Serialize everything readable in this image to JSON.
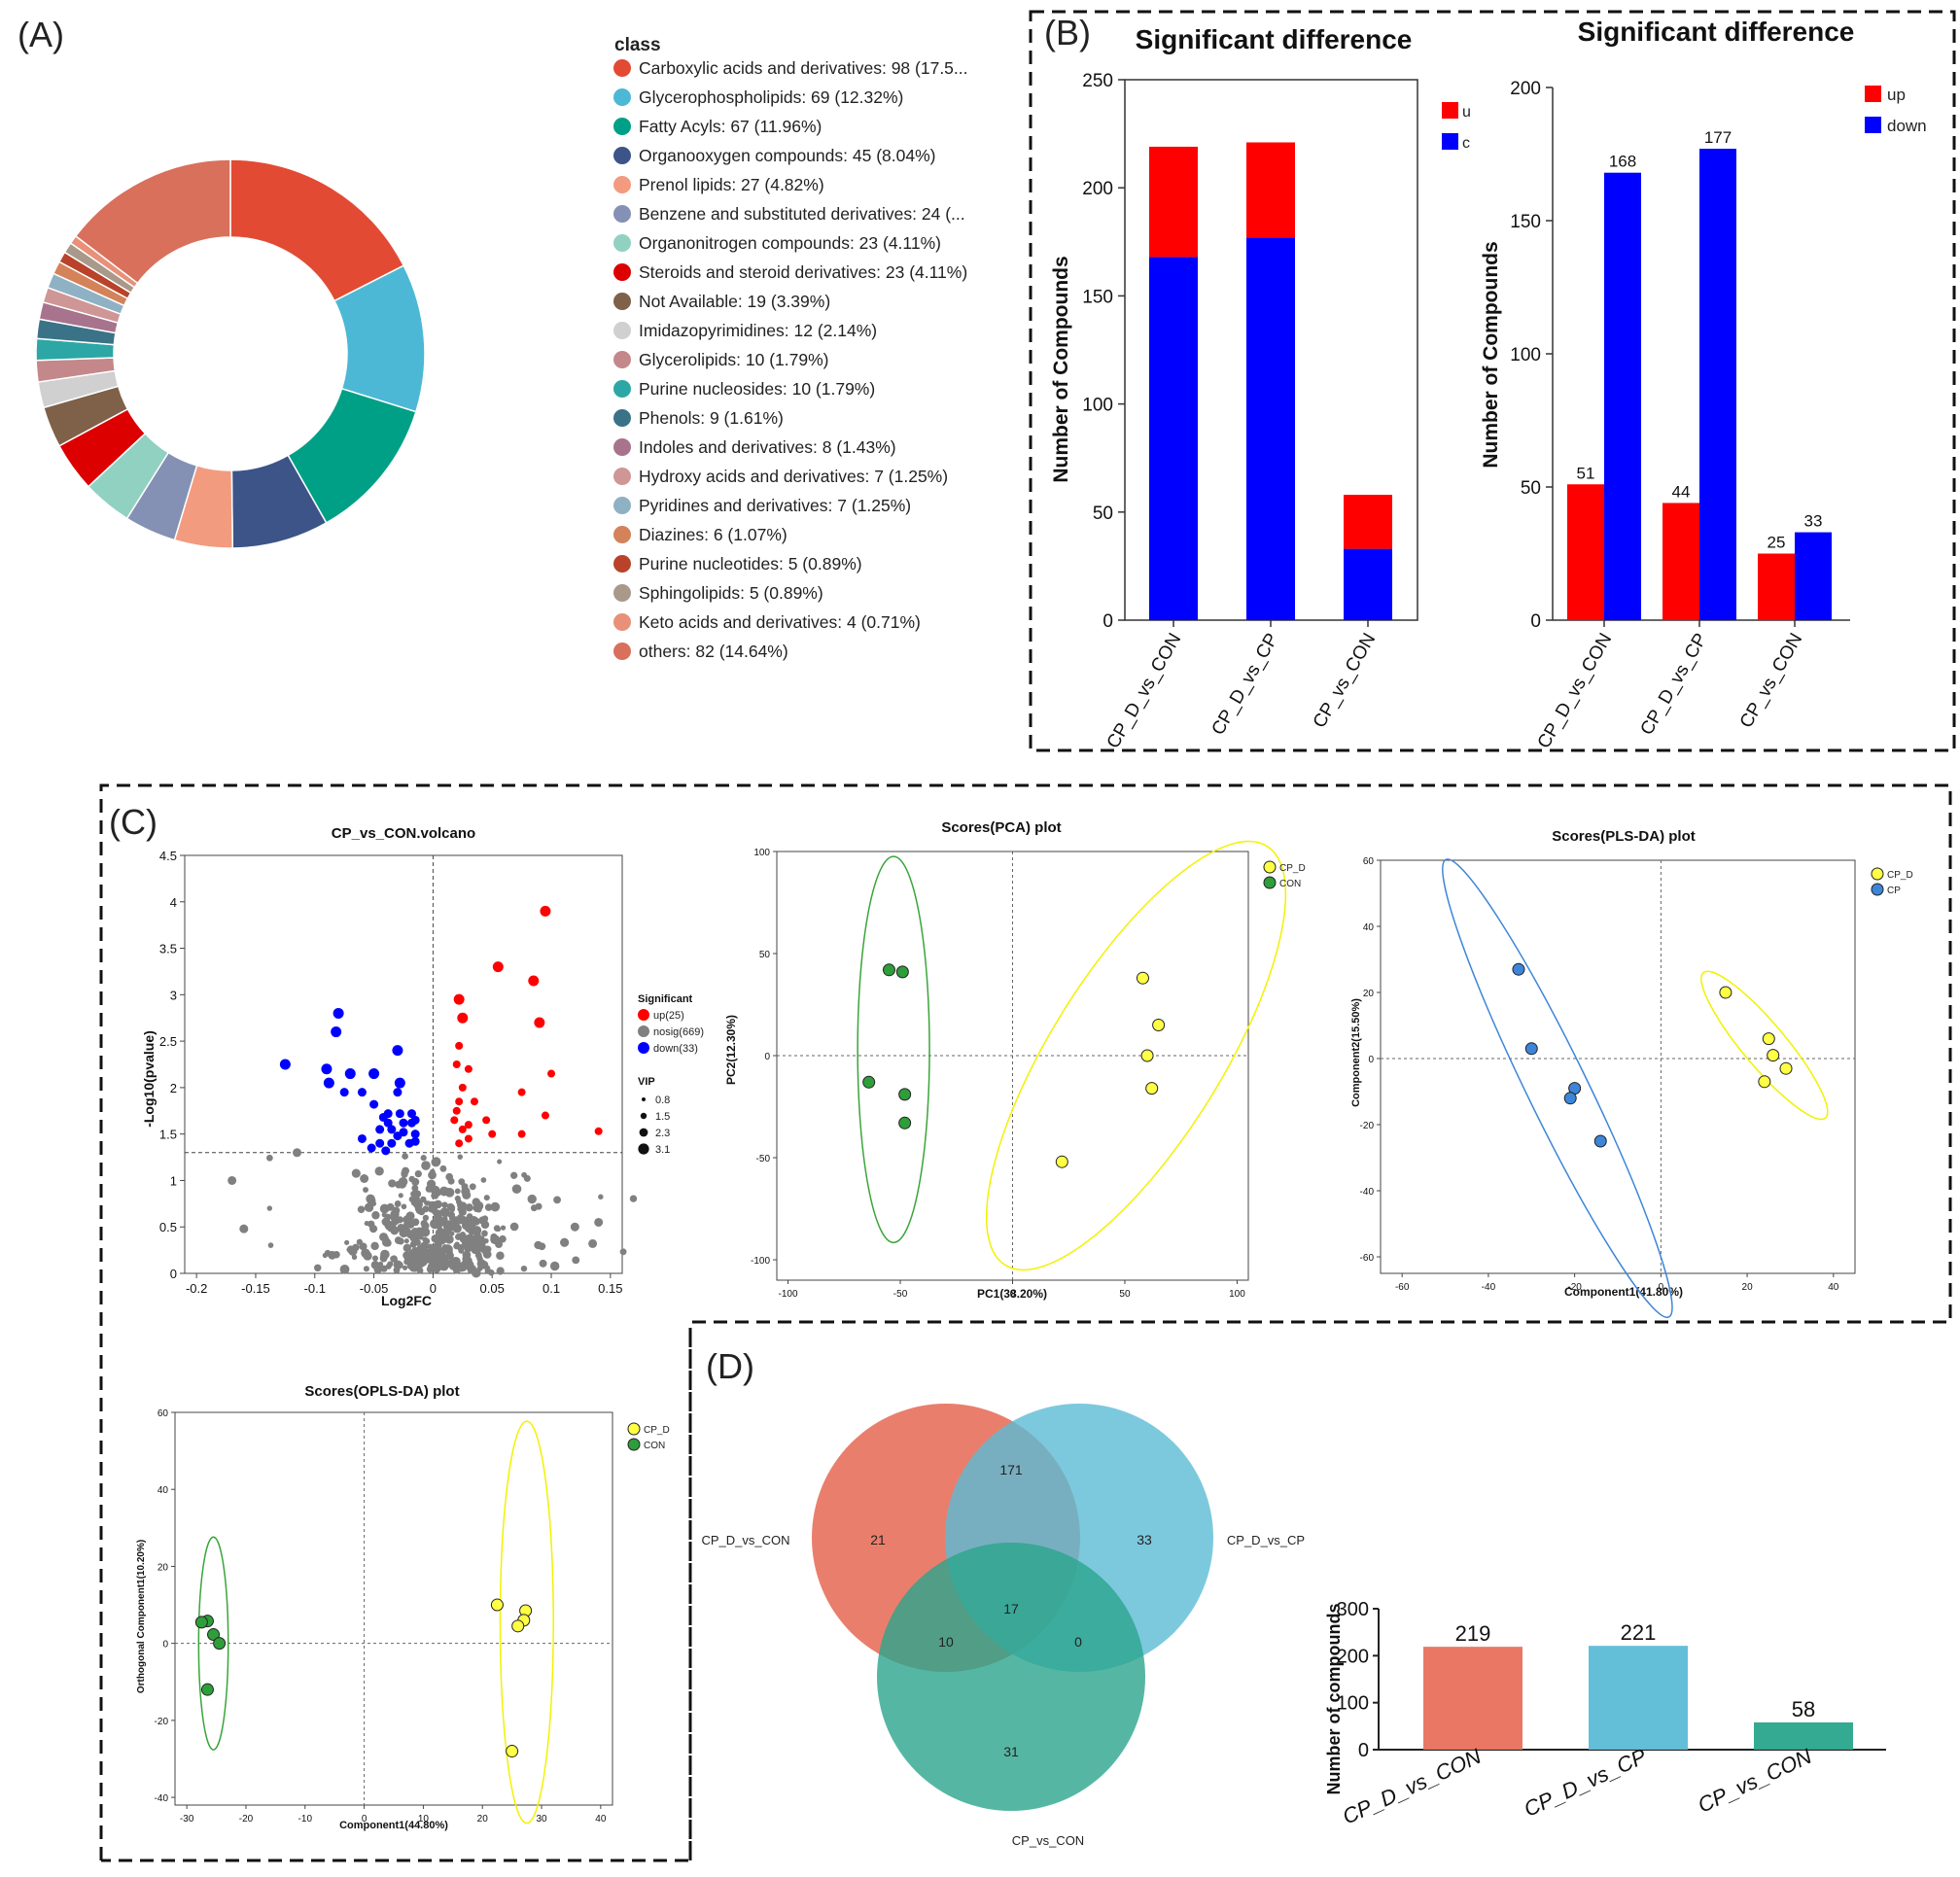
{
  "colors": {
    "up": "#ff0000",
    "down": "#0000ff",
    "nosig": "#808080",
    "group_cp_d": "#ffff44",
    "group_con": "#2e9e3a",
    "group_cp": "#3d85d8",
    "ellipse_cp_d": "#f2f200",
    "ellipse_con": "#3aa53a",
    "ellipse_cp": "#3d85d8",
    "venn_a": "#e8705c",
    "venn_b": "#5bbcd6",
    "venn_c": "#2aa58c"
  },
  "panel_labels": {
    "a": "(A)",
    "b": "(B)",
    "c": "(C)",
    "d": "(D)"
  },
  "chart_data": [
    {
      "id": "A",
      "type": "pie",
      "style": "donut",
      "legend_title": "class",
      "slices": [
        {
          "label": "Carboxylic acids and derivatives: 98 (17.5...",
          "value": 98,
          "color": "#e34a33"
        },
        {
          "label": "Glycerophospholipids: 69 (12.32%)",
          "value": 69,
          "color": "#4db8d5"
        },
        {
          "label": "Fatty Acyls: 67 (11.96%)",
          "value": 67,
          "color": "#00a087"
        },
        {
          "label": "Organooxygen compounds: 45 (8.04%)",
          "value": 45,
          "color": "#3c5488"
        },
        {
          "label": "Prenol lipids: 27 (4.82%)",
          "value": 27,
          "color": "#f39b7f"
        },
        {
          "label": "Benzene and substituted derivatives: 24 (...",
          "value": 24,
          "color": "#8491b4"
        },
        {
          "label": "Organonitrogen compounds: 23 (4.11%)",
          "value": 23,
          "color": "#91d1c2"
        },
        {
          "label": "Steroids and steroid derivatives: 23 (4.11%)",
          "value": 23,
          "color": "#dc0000"
        },
        {
          "label": "Not Available: 19 (3.39%)",
          "value": 19,
          "color": "#7e6148"
        },
        {
          "label": "Imidazopyrimidines: 12 (2.14%)",
          "value": 12,
          "color": "#d0d0d0"
        },
        {
          "label": "Glycerolipids: 10 (1.79%)",
          "value": 10,
          "color": "#c4888a"
        },
        {
          "label": "Purine nucleosides: 10 (1.79%)",
          "value": 10,
          "color": "#2ca7a5"
        },
        {
          "label": "Phenols: 9 (1.61%)",
          "value": 9,
          "color": "#3a7387"
        },
        {
          "label": "Indoles and derivatives: 8 (1.43%)",
          "value": 8,
          "color": "#a8738c"
        },
        {
          "label": "Hydroxy acids and derivatives: 7 (1.25%)",
          "value": 7,
          "color": "#cf9696"
        },
        {
          "label": "Pyridines and derivatives: 7 (1.25%)",
          "value": 7,
          "color": "#8fb1c4"
        },
        {
          "label": "Diazines: 6 (1.07%)",
          "value": 6,
          "color": "#d4825a"
        },
        {
          "label": "Purine nucleotides: 5 (0.89%)",
          "value": 5,
          "color": "#b8432a"
        },
        {
          "label": "Sphingolipids: 5 (0.89%)",
          "value": 5,
          "color": "#a8998a"
        },
        {
          "label": "Keto acids and derivatives: 4 (0.71%)",
          "value": 4,
          "color": "#e8907a"
        },
        {
          "label": "others: 82 (14.64%)",
          "value": 82,
          "color": "#d9705c"
        }
      ]
    },
    {
      "id": "B1",
      "type": "bar",
      "stacked": true,
      "title": "Significant difference",
      "ylabel": "Number of Compounds",
      "ylim": [
        0,
        250
      ],
      "yticks": [
        "0",
        "50",
        "100",
        "150",
        "200",
        "250"
      ],
      "categories": [
        "CP_D_vs_CON",
        "CP_D_vs_CP",
        "CP_vs_CON"
      ],
      "series": [
        {
          "name": "down",
          "values": [
            168,
            177,
            33
          ]
        },
        {
          "name": "up",
          "values": [
            51,
            44,
            25
          ]
        }
      ],
      "legend_fragments": [
        "u",
        "c"
      ]
    },
    {
      "id": "B2",
      "type": "bar",
      "title": "Significant difference",
      "ylabel": "Number of Compounds",
      "ylim": [
        0,
        200
      ],
      "yticks": [
        "0",
        "50",
        "100",
        "150",
        "200"
      ],
      "categories": [
        "CP_D_vs_CON",
        "CP_D_vs_CP",
        "CP_vs_CON"
      ],
      "series": [
        {
          "name": "up",
          "values": [
            51,
            44,
            25
          ]
        },
        {
          "name": "down",
          "values": [
            168,
            177,
            33
          ]
        }
      ],
      "data_labels": {
        "up": [
          "51",
          "44",
          "25"
        ],
        "down": [
          "168",
          "177",
          "33"
        ]
      },
      "legend": [
        "up",
        "down"
      ]
    },
    {
      "id": "C1",
      "type": "scatter",
      "title": "CP_vs_CON.volcano",
      "xlabel": "Log2FC",
      "ylabel": "-Log10(pvalue)",
      "xlim": [
        -0.21,
        0.16
      ],
      "ylim": [
        0,
        4.5
      ],
      "xticks": [
        "-0.2",
        "-0.15",
        "-0.1",
        "-0.05",
        "0",
        "0.05",
        "0.1",
        "0.15"
      ],
      "yticks": [
        "0",
        "0.5",
        "1",
        "1.5",
        "2",
        "2.5",
        "3",
        "3.5",
        "4",
        "4.5"
      ],
      "threshold_y": 1.3,
      "legend": {
        "title": "Significant",
        "items": [
          "up(25)",
          "nosig(669)",
          "down(33)"
        ],
        "vip_title": "VIP",
        "vip_items": [
          "0.8",
          "1.5",
          "2.3",
          "3.1"
        ]
      },
      "up_points": [
        [
          0.095,
          3.9
        ],
        [
          0.055,
          3.3
        ],
        [
          0.085,
          3.15
        ],
        [
          0.09,
          2.7
        ],
        [
          0.1,
          2.15
        ],
        [
          0.095,
          1.7
        ],
        [
          0.075,
          1.95
        ],
        [
          0.14,
          1.53
        ],
        [
          0.075,
          1.5
        ],
        [
          0.045,
          1.65
        ],
        [
          0.05,
          1.5
        ],
        [
          0.035,
          1.85
        ],
        [
          0.022,
          1.85
        ],
        [
          0.025,
          2.0
        ],
        [
          0.02,
          1.75
        ],
        [
          0.03,
          1.6
        ],
        [
          0.025,
          1.55
        ],
        [
          0.03,
          2.2
        ],
        [
          0.022,
          2.45
        ],
        [
          0.02,
          2.25
        ],
        [
          0.025,
          2.75
        ],
        [
          0.022,
          2.95
        ],
        [
          0.03,
          1.45
        ],
        [
          0.018,
          1.65
        ],
        [
          0.022,
          1.4
        ]
      ],
      "down_points": [
        [
          -0.08,
          2.8
        ],
        [
          -0.082,
          2.6
        ],
        [
          -0.125,
          2.25
        ],
        [
          -0.09,
          2.2
        ],
        [
          -0.07,
          2.15
        ],
        [
          -0.05,
          2.15
        ],
        [
          -0.03,
          2.4
        ],
        [
          -0.028,
          2.05
        ],
        [
          -0.088,
          2.05
        ],
        [
          -0.075,
          1.95
        ],
        [
          -0.06,
          1.95
        ],
        [
          -0.03,
          1.95
        ],
        [
          -0.05,
          1.82
        ],
        [
          -0.038,
          1.72
        ],
        [
          -0.028,
          1.72
        ],
        [
          -0.018,
          1.72
        ],
        [
          -0.015,
          1.65
        ],
        [
          -0.042,
          1.68
        ],
        [
          -0.038,
          1.62
        ],
        [
          -0.025,
          1.62
        ],
        [
          -0.018,
          1.62
        ],
        [
          -0.035,
          1.55
        ],
        [
          -0.025,
          1.52
        ],
        [
          -0.015,
          1.5
        ],
        [
          -0.06,
          1.45
        ],
        [
          -0.045,
          1.4
        ],
        [
          -0.035,
          1.4
        ],
        [
          -0.02,
          1.4
        ],
        [
          -0.045,
          1.55
        ],
        [
          -0.03,
          1.48
        ],
        [
          -0.015,
          1.42
        ],
        [
          -0.052,
          1.35
        ],
        [
          -0.04,
          1.32
        ]
      ]
    },
    {
      "id": "C2",
      "type": "scatter",
      "title": "Scores(PCA) plot",
      "xlabel": "PC1(38.20%)",
      "ylabel": "PC2(12.30%)",
      "xlim": [
        -105,
        105
      ],
      "ylim": [
        -110,
        100
      ],
      "xticks": [
        "-100",
        "-50",
        "0",
        "50",
        "100"
      ],
      "yticks": [
        "-100",
        "-50",
        "0",
        "50",
        "100"
      ],
      "legend": [
        "CP_D",
        "CON"
      ],
      "groups": [
        {
          "name": "CP_D",
          "points": [
            [
              58,
              38
            ],
            [
              65,
              15
            ],
            [
              60,
              0
            ],
            [
              62,
              -16
            ],
            [
              22,
              -52
            ]
          ],
          "ellipse": {
            "cx": 55,
            "cy": 0,
            "rx": 110,
            "ry": 38,
            "angle": 58
          }
        },
        {
          "name": "CON",
          "points": [
            [
              -55,
              42
            ],
            [
              -49,
              41
            ],
            [
              -64,
              -13
            ],
            [
              -48,
              -19
            ],
            [
              -48,
              -33
            ]
          ],
          "ellipse": {
            "cx": -53,
            "cy": 3,
            "rx": 86,
            "ry": 16,
            "angle": 90
          }
        }
      ]
    },
    {
      "id": "C3",
      "type": "scatter",
      "title": "Scores(PLS-DA) plot",
      "xlabel": "Component1(41.80%)",
      "ylabel": "Component2(15.50%)",
      "xlim": [
        -65,
        45
      ],
      "ylim": [
        -65,
        60
      ],
      "xticks": [
        "-60",
        "-40",
        "-20",
        "0",
        "20",
        "40"
      ],
      "yticks": [
        "-60",
        "-40",
        "-20",
        "0",
        "20",
        "40",
        "60"
      ],
      "legend": [
        "CP_D",
        "CP"
      ],
      "groups": [
        {
          "name": "CP_D",
          "points": [
            [
              15,
              20
            ],
            [
              25,
              6
            ],
            [
              26,
              1
            ],
            [
              29,
              -3
            ],
            [
              24,
              -7
            ]
          ],
          "ellipse": {
            "cx": 24,
            "cy": 4,
            "rx": 22,
            "ry": 5,
            "angle": -50
          }
        },
        {
          "name": "CP",
          "points": [
            [
              -33,
              27
            ],
            [
              -30,
              3
            ],
            [
              -20,
              -9
            ],
            [
              -21,
              -12
            ],
            [
              -14,
              -25
            ]
          ],
          "ellipse": {
            "cx": -24,
            "cy": -9,
            "rx": 59,
            "ry": 7,
            "angle": -64
          }
        }
      ]
    },
    {
      "id": "C4",
      "type": "scatter",
      "title": "Scores(OPLS-DA) plot",
      "xlabel": "Component1(44.80%)",
      "ylabel": "Orthogonal Component1(10.20%)",
      "xlim": [
        -32,
        42
      ],
      "ylim": [
        -42,
        60
      ],
      "xticks": [
        "-30",
        "-20",
        "-10",
        "0",
        "10",
        "20",
        "30",
        "40"
      ],
      "yticks": [
        "-40",
        "-20",
        "0",
        "20",
        "40",
        "60"
      ],
      "legend": [
        "CP_D",
        "CON"
      ],
      "groups": [
        {
          "name": "CP_D",
          "points": [
            [
              22.5,
              10
            ],
            [
              27.3,
              8.5
            ],
            [
              27,
              6
            ],
            [
              26,
              4.5
            ],
            [
              25,
              -28
            ]
          ],
          "ellipse": {
            "cx": 27.5,
            "cy": 5.5,
            "rx": 4.5,
            "ry": 34,
            "angle": 0
          }
        },
        {
          "name": "CON",
          "points": [
            [
              -26.5,
              5.8
            ],
            [
              -27.5,
              5.5
            ],
            [
              -25.5,
              2.3
            ],
            [
              -24.5,
              0
            ],
            [
              -26.5,
              -12
            ]
          ],
          "ellipse": {
            "cx": -25.5,
            "cy": 0,
            "rx": 2.5,
            "ry": 18,
            "angle": 0
          }
        }
      ]
    },
    {
      "id": "D1",
      "type": "venn",
      "sets": [
        "CP_D_vs_CON",
        "CP_D_vs_CP",
        "CP_vs_CON"
      ],
      "regions": {
        "a_only": "21",
        "b_only": "33",
        "c_only": "31",
        "ab": "171",
        "ac": "10",
        "bc": "0",
        "abc": "17"
      }
    },
    {
      "id": "D2",
      "type": "bar",
      "ylabel": "Number of compounds",
      "ylim": [
        0,
        300
      ],
      "yticks": [
        "0",
        "100",
        "200",
        "300"
      ],
      "categories": [
        "CP_D_vs_CON",
        "CP_D_vs_CP",
        "CP_vs_CON"
      ],
      "values": [
        219,
        221,
        58
      ],
      "data_labels": [
        "219",
        "221",
        "58"
      ]
    }
  ]
}
